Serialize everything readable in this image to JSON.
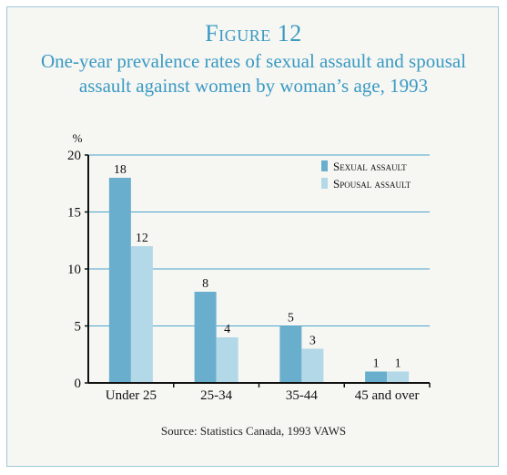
{
  "figure": {
    "label": "Figure 12",
    "title": "One-year prevalence rates of sexual assault and spousal assault against women by woman’s age, 1993",
    "source": "Source: Statistics Canada, 1993 VAWS"
  },
  "chart_data": {
    "type": "bar",
    "title": "One-year prevalence rates of sexual assault and spousal assault against women by woman’s age, 1993",
    "ylabel": "%",
    "xlabel": "",
    "categories": [
      "Under 25",
      "25-34",
      "35-44",
      "45 and over"
    ],
    "series": [
      {
        "name": "Sexual assault",
        "values": [
          18,
          8,
          5,
          1
        ],
        "color": "#6aaecd"
      },
      {
        "name": "Spousal assault",
        "values": [
          12,
          4,
          3,
          1
        ],
        "color": "#b3d8e8"
      }
    ],
    "ylim": [
      0,
      20
    ],
    "yticks": [
      0,
      5,
      10,
      15,
      20
    ],
    "grid": true,
    "gridColor": "#4aa6cc",
    "legend": "top-right"
  }
}
